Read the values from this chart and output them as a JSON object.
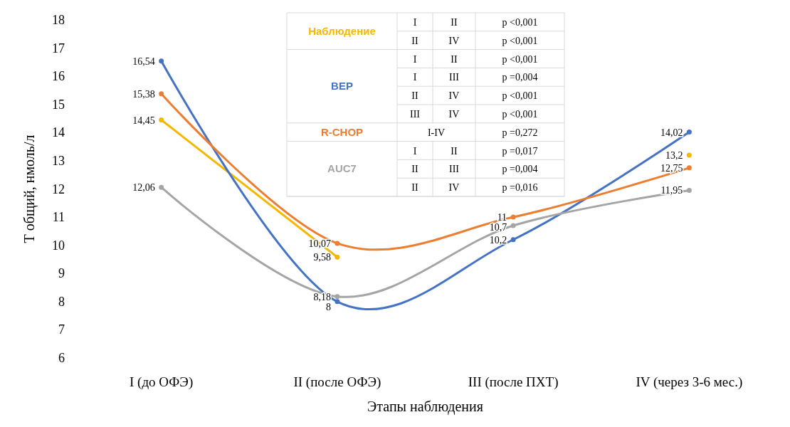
{
  "chart_data": {
    "type": "line",
    "xlabel": "Этапы наблюдения",
    "ylabel": "Т общий, нмоль/л",
    "categories": [
      "I (до ОФЭ)",
      "II (после ОФЭ)",
      "III (после ПХТ)",
      "IV (через 3-6 мес.)"
    ],
    "series": [
      {
        "name": "Наблюдение",
        "color": "#f5b800",
        "values": [
          14.45,
          9.58,
          null,
          13.2
        ],
        "value_labels": [
          "14,45",
          "9,58",
          null,
          "13,2"
        ]
      },
      {
        "name": "BEP",
        "color": "#4472c4",
        "values": [
          16.54,
          8,
          10.2,
          14.02
        ],
        "value_labels": [
          "16,54",
          "8",
          "10,2",
          "14,02"
        ]
      },
      {
        "name": "R-CHOP",
        "color": "#ed7d31",
        "values": [
          15.38,
          10.07,
          11,
          12.75
        ],
        "value_labels": [
          "15,38",
          "10,07",
          "11",
          "12,75"
        ]
      },
      {
        "name": "AUC7",
        "color": "#a5a5a5",
        "values": [
          12.06,
          8.18,
          10.7,
          11.95
        ],
        "value_labels": [
          "12,06",
          "8,18",
          "10,7",
          "11,95"
        ]
      }
    ],
    "ylim": [
      6,
      18
    ],
    "yticks": [
      6,
      7,
      8,
      9,
      10,
      11,
      12,
      13,
      14,
      15,
      16,
      17,
      18
    ],
    "grid": false,
    "marker": "circle",
    "line_style": "solid",
    "legend": "top",
    "annotations": [
      "I",
      "II",
      "p <0,001",
      "II",
      "IV",
      "p <0,001",
      "I",
      "II",
      "p <0,001",
      "I",
      "III",
      "p =0,004",
      "II",
      "IV",
      "p <0,001",
      "III",
      "IV",
      "p <0,001",
      "I-IV",
      "p =0,272",
      "I",
      "II",
      "p =0,017",
      "II",
      "III",
      "p =0,004",
      "II",
      "IV",
      "p =0,016"
    ]
  }
}
